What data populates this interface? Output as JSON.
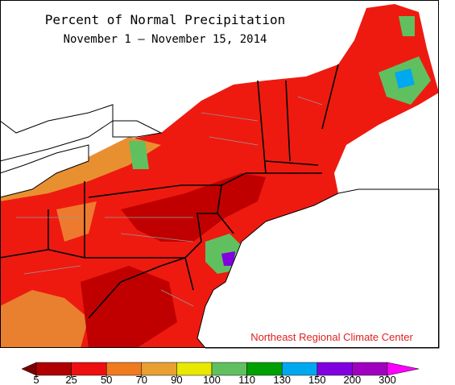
{
  "header": {
    "title": "Percent of Normal Precipitation",
    "subtitle": "November 1 — November 15, 2014"
  },
  "credit": "Northeast Regional Climate Center",
  "legend": {
    "ticks": [
      5,
      25,
      50,
      70,
      90,
      100,
      110,
      130,
      150,
      200,
      300
    ],
    "colors": [
      "#7a0000",
      "#b00000",
      "#ee1010",
      "#f07a20",
      "#e8a030",
      "#e8e800",
      "#60c060",
      "#00a000",
      "#00a8f0",
      "#8000e0",
      "#a000c0",
      "#ff00ff"
    ]
  }
}
